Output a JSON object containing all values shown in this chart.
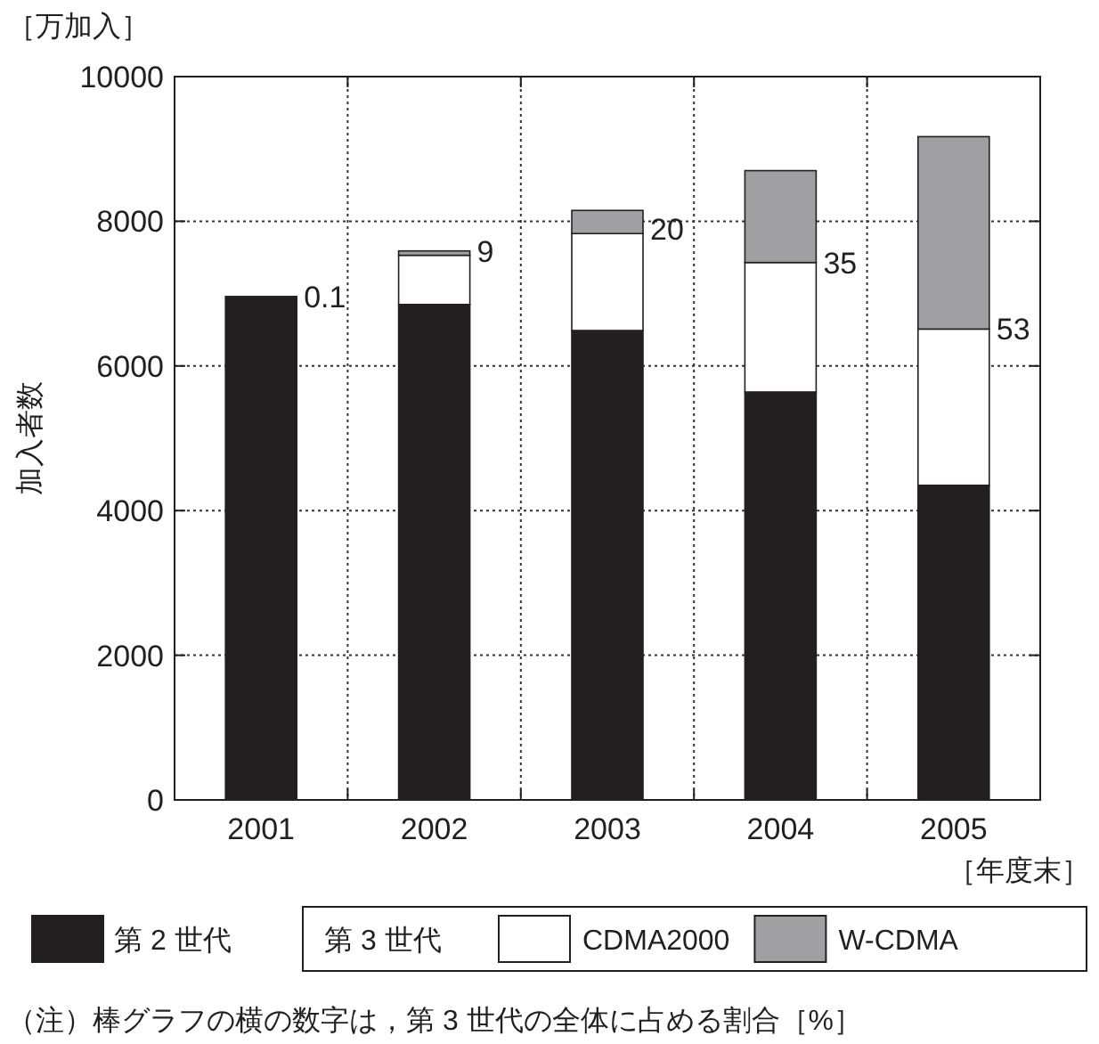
{
  "chart_data": {
    "type": "bar",
    "stacked": true,
    "categories": [
      "2001",
      "2002",
      "2003",
      "2004",
      "2005"
    ],
    "series": [
      {
        "name": "第 2 世代",
        "color": "#231f20",
        "values": [
          6960,
          6850,
          6490,
          5640,
          4350
        ]
      },
      {
        "name": "CDMA2000",
        "color": "#ffffff",
        "values": [
          null,
          680,
          1340,
          1790,
          2160
        ]
      },
      {
        "name": "W-CDMA",
        "color": "#a0a0a3",
        "values": [
          0,
          60,
          320,
          1270,
          2660
        ]
      }
    ],
    "ylabel": "加入者数",
    "xlabel": "［年度末］",
    "legend_title": "第 3 世代",
    "ylim": [
      0,
      10000
    ],
    "yticks": [
      0,
      2000,
      4000,
      6000,
      8000,
      10000
    ],
    "grid": true,
    "legend": "bottom",
    "annotations": [
      {
        "text": "0.1",
        "x": "2001",
        "y": 6960
      },
      {
        "text": "9",
        "x": "2002",
        "y": 7590
      },
      {
        "text": "20",
        "x": "2003",
        "y": 7900
      },
      {
        "text": "35",
        "x": "2004",
        "y": 7430
      },
      {
        "text": "53",
        "x": "2005",
        "y": 6510
      },
      "［万加入］",
      "（注）棒グラフの横の数字は，第 3 世代の全体に占める割合［%］"
    ]
  }
}
